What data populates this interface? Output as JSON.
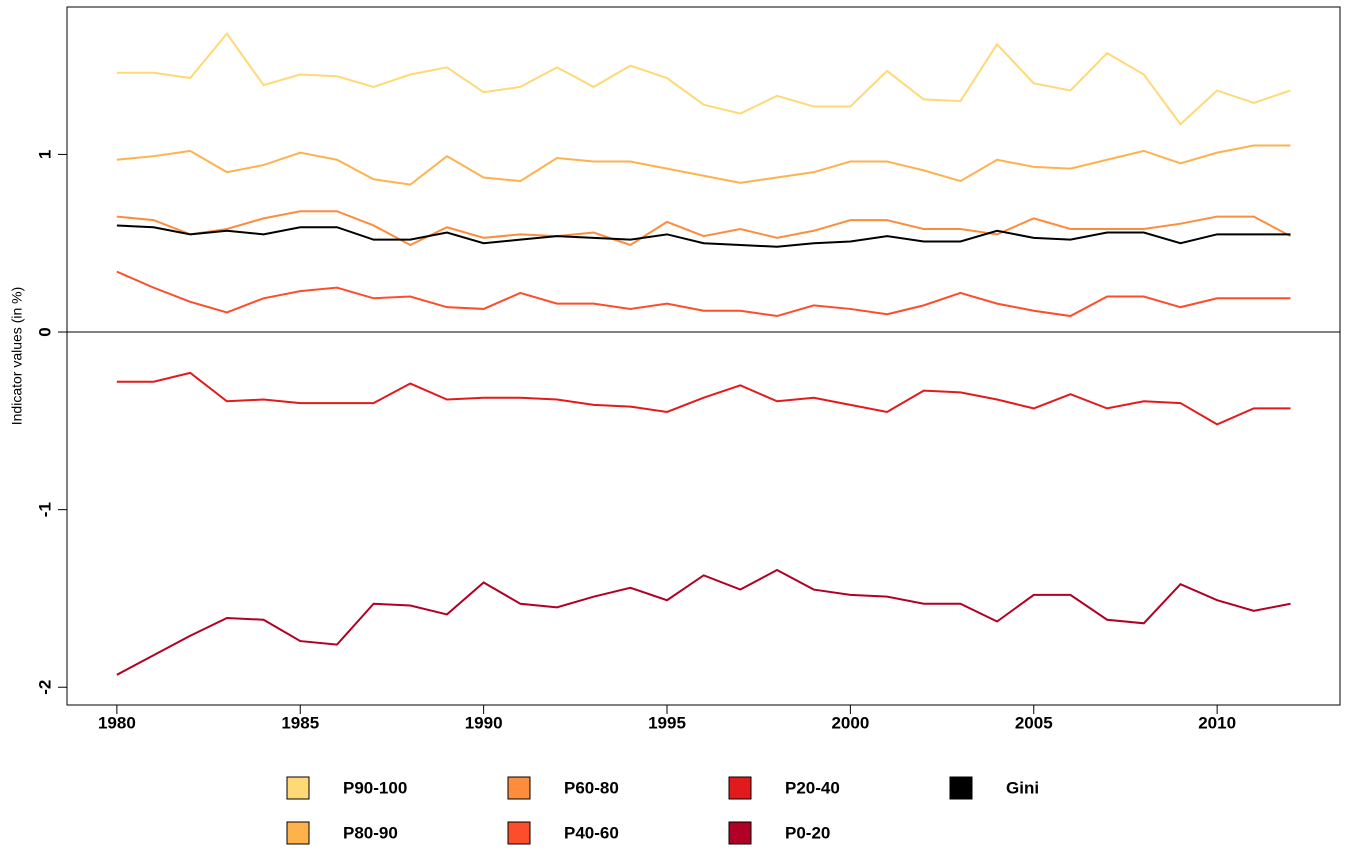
{
  "chart_data": {
    "type": "line",
    "y_label": "Indicator values (in %)",
    "x": [
      1980,
      1981,
      1982,
      1983,
      1984,
      1985,
      1986,
      1987,
      1988,
      1989,
      1990,
      1991,
      1992,
      1993,
      1994,
      1995,
      1996,
      1997,
      1998,
      1999,
      2000,
      2001,
      2002,
      2003,
      2004,
      2005,
      2006,
      2007,
      2008,
      2009,
      2010,
      2011,
      2012
    ],
    "xlim": [
      1978.64,
      2013.35
    ],
    "xticks": [
      1980,
      1985,
      1990,
      1995,
      2000,
      2005,
      2010
    ],
    "ylim": [
      -2.1,
      1.83
    ],
    "yticks": [
      -2,
      -1,
      0,
      1
    ],
    "reference_line": 0,
    "legend": "bottom",
    "series": [
      {
        "name": "P90-100",
        "color": "#FED976",
        "values": [
          1.46,
          1.46,
          1.43,
          1.68,
          1.39,
          1.45,
          1.44,
          1.38,
          1.45,
          1.49,
          1.35,
          1.38,
          1.49,
          1.38,
          1.5,
          1.43,
          1.28,
          1.23,
          1.33,
          1.27,
          1.27,
          1.47,
          1.31,
          1.3,
          1.62,
          1.4,
          1.36,
          1.57,
          1.45,
          1.17,
          1.36,
          1.29,
          1.36
        ]
      },
      {
        "name": "P80-90",
        "color": "#FEB24C",
        "values": [
          0.97,
          0.99,
          1.02,
          0.9,
          0.94,
          1.01,
          0.97,
          0.86,
          0.83,
          0.99,
          0.87,
          0.85,
          0.98,
          0.96,
          0.96,
          0.92,
          0.88,
          0.84,
          0.87,
          0.9,
          0.96,
          0.96,
          0.91,
          0.85,
          0.97,
          0.93,
          0.92,
          0.97,
          1.02,
          0.95,
          1.01,
          1.05,
          1.05
        ]
      },
      {
        "name": "P60-80",
        "color": "#FD8D3C",
        "values": [
          0.65,
          0.63,
          0.55,
          0.58,
          0.64,
          0.68,
          0.68,
          0.6,
          0.49,
          0.59,
          0.53,
          0.55,
          0.54,
          0.56,
          0.49,
          0.62,
          0.54,
          0.58,
          0.53,
          0.57,
          0.63,
          0.63,
          0.58,
          0.58,
          0.55,
          0.64,
          0.58,
          0.58,
          0.58,
          0.61,
          0.65,
          0.65,
          0.54
        ]
      },
      {
        "name": "P40-60",
        "color": "#FC4E2A",
        "values": [
          0.34,
          0.25,
          0.17,
          0.11,
          0.19,
          0.23,
          0.25,
          0.19,
          0.2,
          0.14,
          0.13,
          0.22,
          0.16,
          0.16,
          0.13,
          0.16,
          0.12,
          0.12,
          0.09,
          0.15,
          0.13,
          0.1,
          0.15,
          0.22,
          0.16,
          0.12,
          0.09,
          0.2,
          0.2,
          0.14,
          0.19,
          0.19,
          0.19
        ]
      },
      {
        "name": "P20-40",
        "color": "#E31A1C",
        "values": [
          -0.28,
          -0.28,
          -0.23,
          -0.39,
          -0.38,
          -0.4,
          -0.4,
          -0.4,
          -0.29,
          -0.38,
          -0.37,
          -0.37,
          -0.38,
          -0.41,
          -0.42,
          -0.45,
          -0.37,
          -0.3,
          -0.39,
          -0.37,
          -0.41,
          -0.45,
          -0.33,
          -0.34,
          -0.38,
          -0.43,
          -0.35,
          -0.43,
          -0.39,
          -0.4,
          -0.52,
          -0.43,
          -0.43
        ]
      },
      {
        "name": "P0-20",
        "color": "#B10026",
        "values": [
          -1.93,
          -1.82,
          -1.71,
          -1.61,
          -1.62,
          -1.74,
          -1.76,
          -1.53,
          -1.54,
          -1.59,
          -1.41,
          -1.53,
          -1.55,
          -1.49,
          -1.44,
          -1.51,
          -1.37,
          -1.45,
          -1.34,
          -1.45,
          -1.48,
          -1.49,
          -1.53,
          -1.53,
          -1.63,
          -1.48,
          -1.48,
          -1.62,
          -1.64,
          -1.42,
          -1.51,
          -1.57,
          -1.53
        ]
      },
      {
        "name": "Gini",
        "color": "#000000",
        "values": [
          0.6,
          0.59,
          0.55,
          0.57,
          0.55,
          0.59,
          0.59,
          0.52,
          0.52,
          0.56,
          0.5,
          0.52,
          0.54,
          0.53,
          0.52,
          0.55,
          0.5,
          0.49,
          0.48,
          0.5,
          0.51,
          0.54,
          0.51,
          0.51,
          0.57,
          0.53,
          0.52,
          0.56,
          0.56,
          0.5,
          0.55,
          0.55,
          0.55
        ]
      }
    ]
  }
}
